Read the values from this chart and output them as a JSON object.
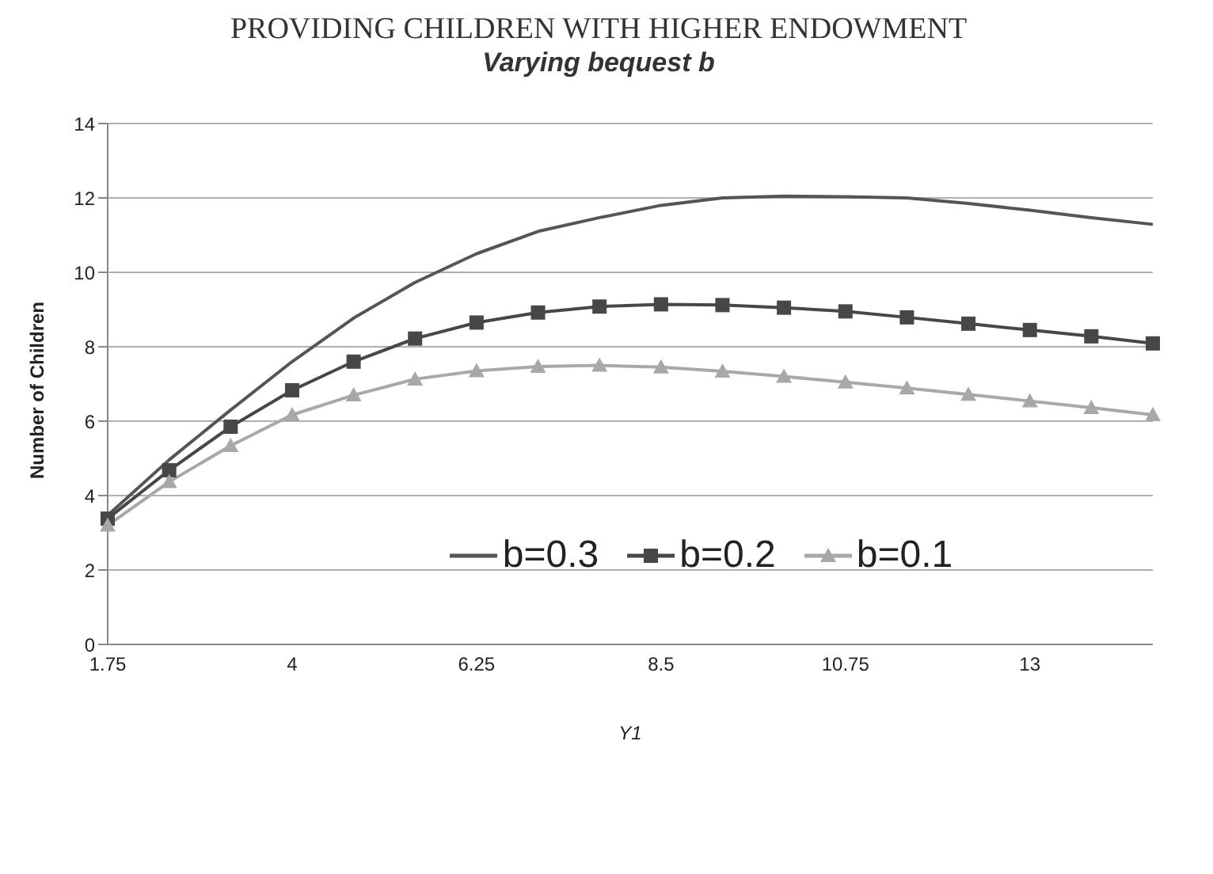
{
  "chart_data": {
    "type": "line",
    "title": "PROVIDING CHILDREN WITH HIGHER ENDOWMENT",
    "subtitle": "Varying bequest b",
    "xlabel": "Y1",
    "ylabel": "Number of Children",
    "categories": [
      "1.75",
      null,
      null,
      "4",
      null,
      null,
      "6.25",
      null,
      null,
      "8.5",
      null,
      null,
      "10.75",
      null,
      null,
      "13",
      null,
      null
    ],
    "series": [
      {
        "name": "b=0.3",
        "color": "#555555",
        "marker": "none",
        "values": [
          3.47,
          4.96,
          6.3,
          7.6,
          8.77,
          9.73,
          10.5,
          11.1,
          11.47,
          11.8,
          12.0,
          12.05,
          12.03,
          12.0,
          11.85,
          11.67,
          11.47,
          11.29
        ]
      },
      {
        "name": "b=0.2",
        "color": "#474747",
        "marker": "square",
        "values": [
          3.38,
          4.68,
          5.85,
          6.83,
          7.6,
          8.22,
          8.65,
          8.92,
          9.08,
          9.14,
          9.12,
          9.05,
          8.95,
          8.79,
          8.62,
          8.45,
          8.28,
          8.09
        ]
      },
      {
        "name": "b=0.1",
        "color": "#a8a8a8",
        "marker": "triangle",
        "values": [
          3.2,
          4.37,
          5.34,
          6.17,
          6.7,
          7.13,
          7.35,
          7.47,
          7.5,
          7.45,
          7.34,
          7.2,
          7.05,
          6.89,
          6.72,
          6.54,
          6.36,
          6.17
        ]
      }
    ],
    "ylim": [
      0,
      14
    ],
    "yticks": [
      0,
      2,
      4,
      6,
      8,
      10,
      12,
      14
    ],
    "grid": "y",
    "legend": "bottom",
    "line_style": "solid"
  }
}
